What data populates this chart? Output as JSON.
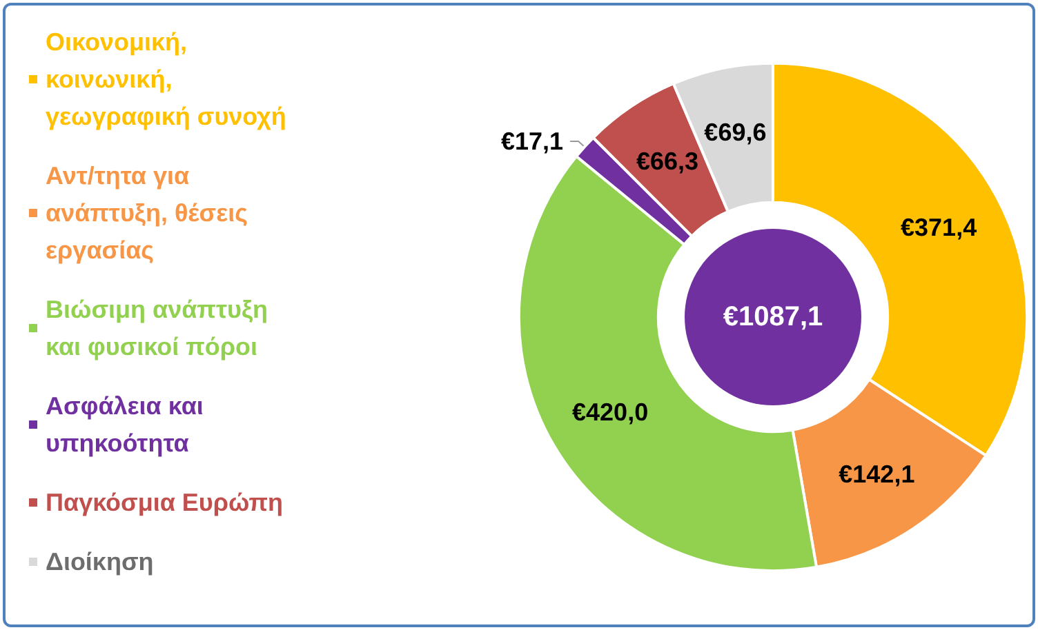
{
  "chart_data": {
    "type": "donut",
    "categories": [
      "Οικονομική, κοινωνική, γεωγραφική συνοχή",
      "Αντ/τητα για ανάπτυξη, θέσεις εργασίας",
      "Βιώσιμη ανάπτυξη και φυσικοί πόροι",
      "Ασφάλεια και υπηκοότητα",
      "Παγκόσμια Ευρώπη",
      "Διοίκηση"
    ],
    "values": [
      371.4,
      142.1,
      420.0,
      17.1,
      66.3,
      69.6
    ],
    "value_labels": [
      "€371,4",
      "€142,1",
      "€420,0",
      "€17,1",
      "€66,3",
      "€69,6"
    ],
    "colors": [
      "#ffc000",
      "#f79646",
      "#92d050",
      "#7030a0",
      "#c0504d",
      "#d9d9d9"
    ],
    "annotations": [
      "€1087,1"
    ],
    "legend": "left"
  }
}
